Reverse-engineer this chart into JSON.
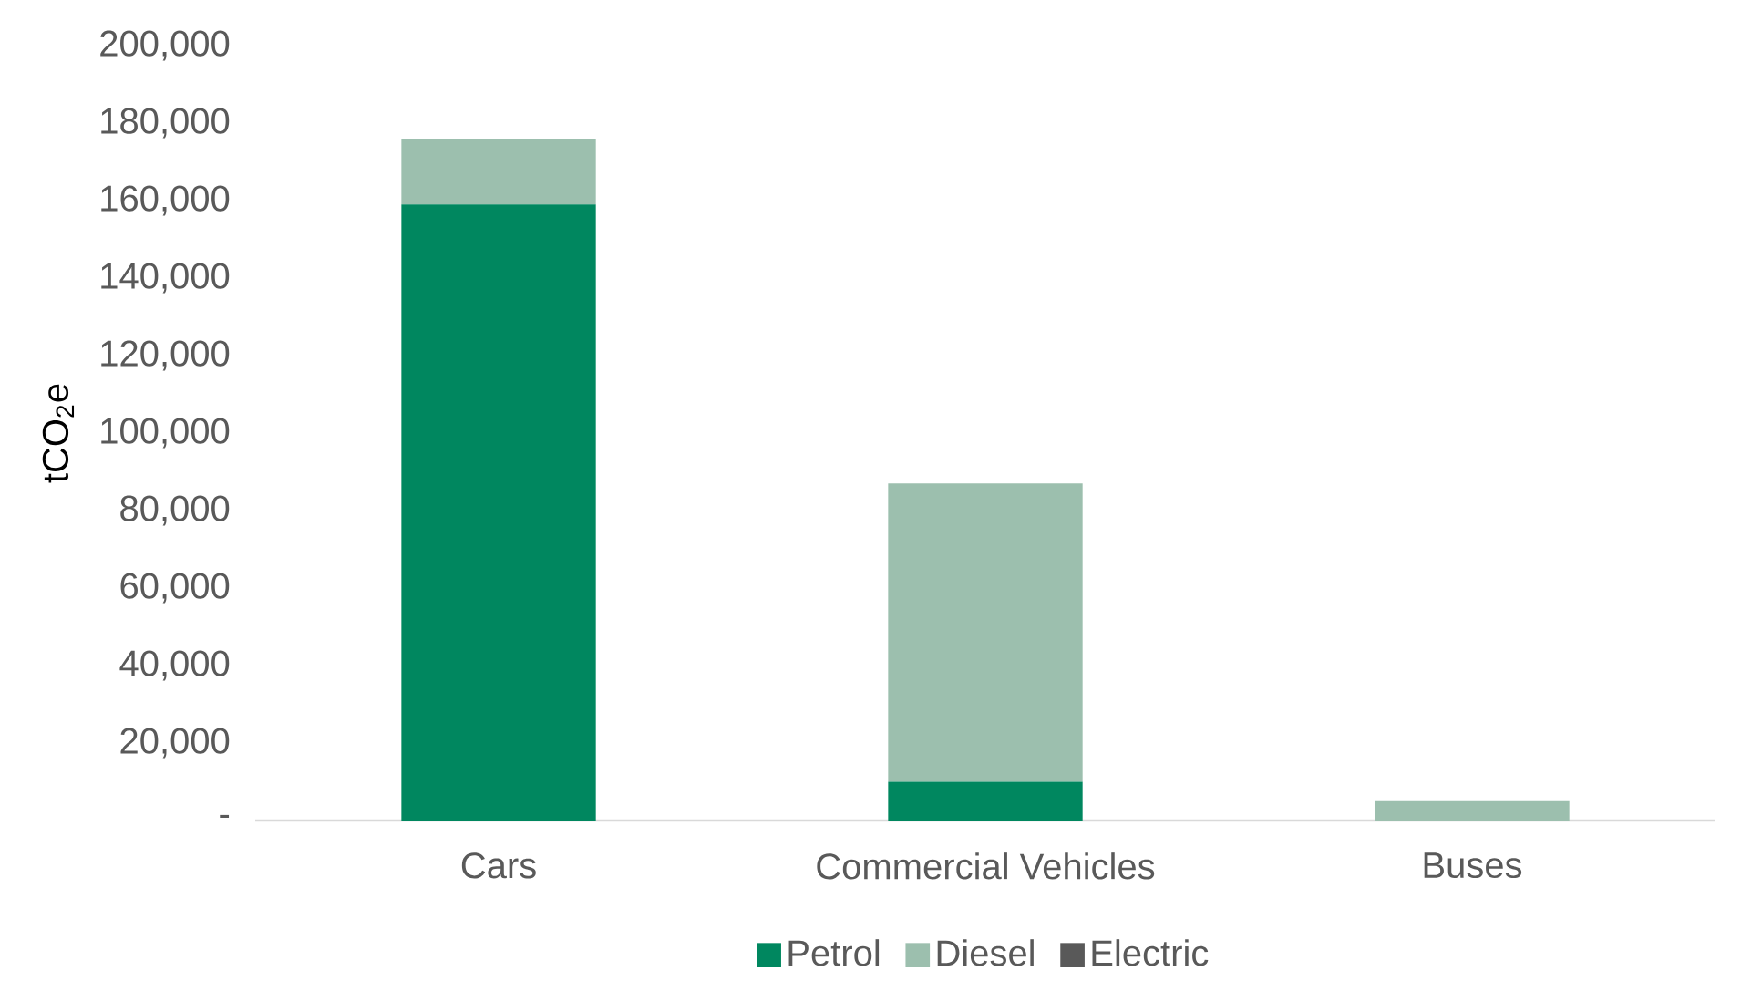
{
  "chart_data": {
    "type": "bar",
    "stacked": true,
    "ylabel": "tCO$_{2}$e",
    "categories": [
      "Cars",
      "Commercial Vehicles",
      "Buses"
    ],
    "series": [
      {
        "name": "Petrol",
        "color": "#00875f",
        "values": [
          159000,
          10000,
          0
        ]
      },
      {
        "name": "Diesel",
        "color": "#9cbfae",
        "values": [
          17000,
          77000,
          5000
        ]
      },
      {
        "name": "Electric",
        "color": "#595959",
        "values": [
          0,
          0,
          0
        ]
      }
    ],
    "ylim": [
      0,
      200000
    ],
    "yticks": [
      {
        "value": 0,
        "label": "-"
      },
      {
        "value": 20000,
        "label": "20,000"
      },
      {
        "value": 40000,
        "label": "40,000"
      },
      {
        "value": 60000,
        "label": "60,000"
      },
      {
        "value": 80000,
        "label": "80,000"
      },
      {
        "value": 100000,
        "label": "100,000"
      },
      {
        "value": 120000,
        "label": "120,000"
      },
      {
        "value": 140000,
        "label": "140,000"
      },
      {
        "value": 160000,
        "label": "160,000"
      },
      {
        "value": 180000,
        "label": "180,000"
      },
      {
        "value": 200000,
        "label": "200,000"
      }
    ],
    "grid": false,
    "legend": "bottom"
  }
}
